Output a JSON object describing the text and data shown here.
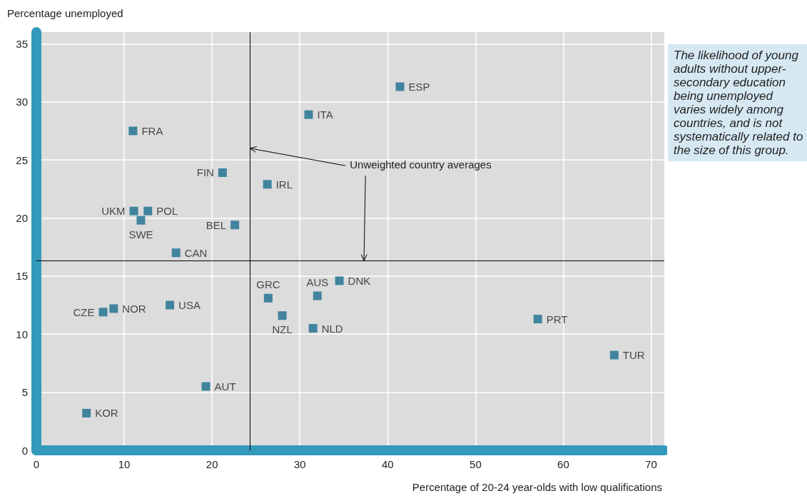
{
  "chart_data": {
    "type": "scatter",
    "xlabel": "Percentage of 20-24 year-olds with low qualifications",
    "ylabel": "Percentage unemployed",
    "x": [
      41.4,
      31.0,
      11.0,
      21.2,
      26.3,
      11.1,
      12.7,
      11.9,
      22.6,
      15.9,
      34.5,
      26.4,
      32.0,
      8.8,
      7.6,
      15.2,
      28.0,
      31.5,
      57.1,
      65.8,
      19.3,
      5.7
    ],
    "values": [
      31.3,
      28.9,
      27.5,
      23.9,
      22.9,
      20.6,
      20.6,
      19.8,
      19.4,
      17.0,
      14.6,
      13.1,
      13.3,
      12.2,
      11.9,
      12.5,
      11.6,
      10.5,
      11.3,
      8.2,
      5.5,
      3.2
    ],
    "value_labels": [
      "ESP",
      "ITA",
      "FRA",
      "FIN",
      "IRL",
      "UKM",
      "POL",
      "SWE",
      "BEL",
      "CAN",
      "DNK",
      "GRC",
      "AUS",
      "NOR",
      "CZE",
      "USA",
      "NZL",
      "NLD",
      "PRT",
      "TUR",
      "AUT",
      "KOR"
    ],
    "color": "#1a6e8e",
    "marker": "square",
    "xlim": [
      0,
      71.5
    ],
    "xticks": [
      0,
      10,
      20,
      30,
      40,
      50,
      60,
      70
    ],
    "ylim": [
      0,
      36
    ],
    "yticks": [
      0,
      5,
      10,
      15,
      20,
      25,
      30,
      35
    ],
    "grid": true,
    "ref_lines": [
      {
        "axis": "x",
        "value": 24.3,
        "color": "#000000"
      },
      {
        "axis": "y",
        "value": 16.3,
        "color": "#000000"
      }
    ],
    "annotations": [
      {
        "text": "Unweighted country averages",
        "x": 24.3,
        "y": 26
      },
      "The likelihood of young adults without upper-secondary education being unemployed varies widely among countries, and is not systematically related to the size of this group."
    ]
  }
}
